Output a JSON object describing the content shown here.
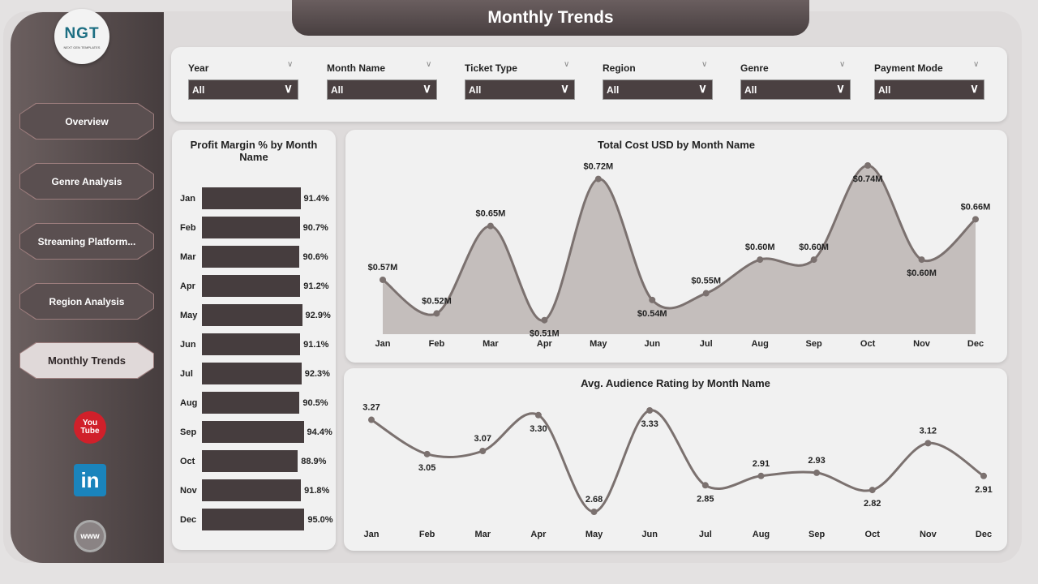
{
  "title": "Monthly Trends",
  "logo": {
    "text": "NGT",
    "subtitle": "NEXT GEN TEMPLATES"
  },
  "nav": [
    {
      "label": "Overview"
    },
    {
      "label": "Genre Analysis"
    },
    {
      "label": "Streaming Platform..."
    },
    {
      "label": "Region Analysis"
    },
    {
      "label": "Monthly Trends",
      "active": true
    }
  ],
  "social": [
    {
      "icon": "youtube-icon",
      "label": "You Tube"
    },
    {
      "icon": "linkedin-icon",
      "label": "in"
    },
    {
      "icon": "globe-www-icon",
      "label": "www"
    }
  ],
  "filters": [
    {
      "label": "Year",
      "value": "All"
    },
    {
      "label": "Month Name",
      "value": "All"
    },
    {
      "label": "Ticket Type",
      "value": "All"
    },
    {
      "label": "Region",
      "value": "All"
    },
    {
      "label": "Genre",
      "value": "All"
    },
    {
      "label": "Payment Mode",
      "value": "All"
    }
  ],
  "colors": {
    "bar": "#463d3e",
    "line": "#7b716f",
    "area": "#c4bebc",
    "sidebar": "#4f4546"
  },
  "chart_data": [
    {
      "type": "bar",
      "orientation": "horizontal",
      "title": "Profit Margin % by Month Name",
      "categories": [
        "Jan",
        "Feb",
        "Mar",
        "Apr",
        "May",
        "Jun",
        "Jul",
        "Aug",
        "Sep",
        "Oct",
        "Nov",
        "Dec"
      ],
      "values": [
        91.4,
        90.7,
        90.6,
        91.2,
        92.9,
        91.1,
        92.3,
        90.5,
        94.4,
        88.9,
        91.8,
        95.0
      ],
      "labels": [
        "91.4%",
        "90.7%",
        "90.6%",
        "91.2%",
        "92.9%",
        "91.1%",
        "92.3%",
        "90.5%",
        "94.4%",
        "88.9%",
        "91.8%",
        "95.0%"
      ],
      "xlim": [
        0,
        100
      ]
    },
    {
      "type": "area",
      "title": "Total Cost USD by Month Name",
      "categories": [
        "Jan",
        "Feb",
        "Mar",
        "Apr",
        "May",
        "Jun",
        "Jul",
        "Aug",
        "Sep",
        "Oct",
        "Nov",
        "Dec"
      ],
      "values": [
        0.57,
        0.52,
        0.65,
        0.51,
        0.72,
        0.54,
        0.55,
        0.6,
        0.6,
        0.74,
        0.6,
        0.66
      ],
      "labels": [
        "$0.57M",
        "$0.52M",
        "$0.65M",
        "$0.51M",
        "$0.72M",
        "$0.54M",
        "$0.55M",
        "$0.60M",
        "$0.60M",
        "$0.74M",
        "$0.60M",
        "$0.66M"
      ],
      "label_pos": [
        "above",
        "above",
        "above",
        "below",
        "above",
        "below",
        "above",
        "above",
        "above",
        "below",
        "below",
        "above"
      ],
      "ylim": [
        0.5,
        0.74
      ]
    },
    {
      "type": "line",
      "title": "Avg. Audience Rating by Month Name",
      "categories": [
        "Jan",
        "Feb",
        "Mar",
        "Apr",
        "May",
        "Jun",
        "Jul",
        "Aug",
        "Sep",
        "Oct",
        "Nov",
        "Dec"
      ],
      "values": [
        3.27,
        3.05,
        3.07,
        3.3,
        2.68,
        3.33,
        2.85,
        2.91,
        2.93,
        2.82,
        3.12,
        2.91
      ],
      "labels": [
        "3.27",
        "3.05",
        "3.07",
        "3.30",
        "2.68",
        "3.33",
        "2.85",
        "2.91",
        "2.93",
        "2.82",
        "3.12",
        "2.91"
      ],
      "label_pos": [
        "above",
        "below",
        "above",
        "below",
        "above",
        "below",
        "below",
        "above",
        "above",
        "below",
        "above",
        "below"
      ],
      "ylim": [
        2.68,
        3.33
      ]
    }
  ]
}
